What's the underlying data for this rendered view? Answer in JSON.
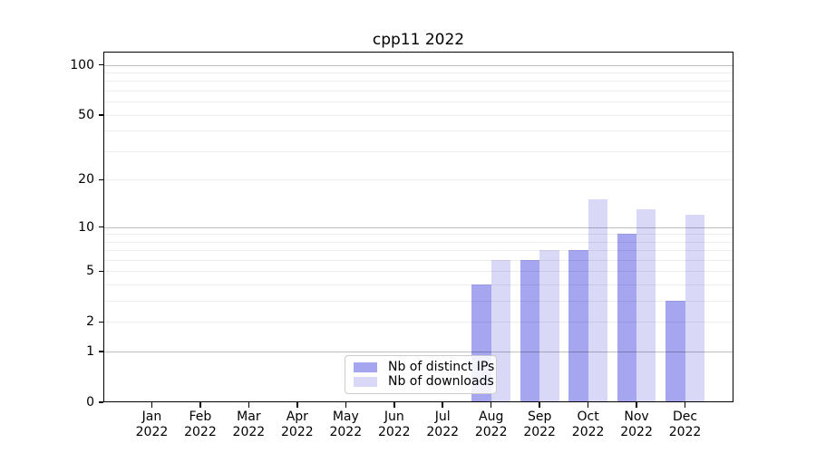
{
  "title": "cpp11 2022",
  "chart_data": {
    "type": "bar",
    "title": "cpp11 2022",
    "categories": [
      "Jan",
      "Feb",
      "Mar",
      "Apr",
      "May",
      "Jun",
      "Jul",
      "Aug",
      "Sep",
      "Oct",
      "Nov",
      "Dec"
    ],
    "year": "2022",
    "series": [
      {
        "name": "Nb of distinct IPs",
        "color": "#a5a5f0",
        "values": [
          0,
          0,
          0,
          0,
          0,
          0,
          0,
          4,
          6,
          7,
          9,
          3
        ]
      },
      {
        "name": "Nb of downloads",
        "color": "#d9d9f7",
        "values": [
          0,
          0,
          0,
          0,
          0,
          0,
          0,
          6,
          7,
          15,
          13,
          12
        ]
      }
    ],
    "yscale": "log1p",
    "ylim": [
      0,
      120
    ],
    "yticks": [
      0,
      1,
      2,
      5,
      10,
      20,
      50,
      100
    ],
    "major_gridlines": [
      1,
      10,
      100
    ],
    "minor_gridlines": [
      2,
      3,
      4,
      5,
      6,
      7,
      8,
      9,
      20,
      30,
      40,
      50,
      60,
      70,
      80,
      90
    ],
    "grid": true,
    "legend_position": "lower center",
    "xlabel": "",
    "ylabel": ""
  },
  "colors": {
    "background": "#ffffff",
    "bar_distinct_ips": "#a5a5f0",
    "bar_downloads": "#d9d9f7",
    "major_grid": "rgba(0,0,0,0.25)",
    "minor_grid": "rgba(0,0,0,0.07)",
    "spine": "#000000"
  }
}
